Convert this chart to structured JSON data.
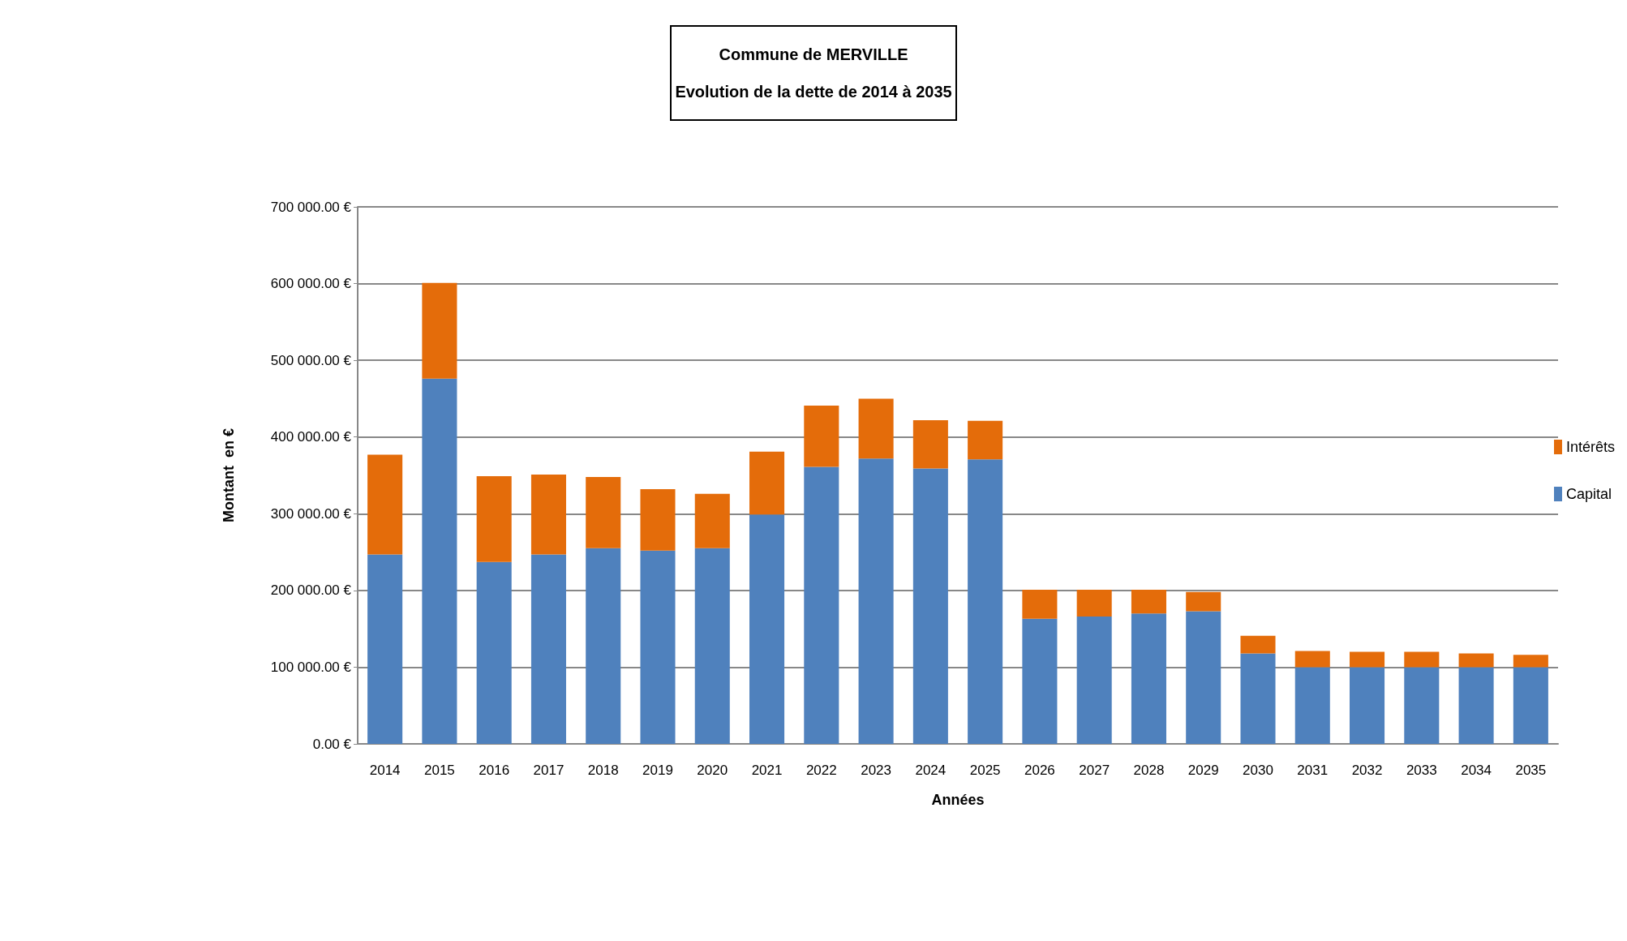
{
  "chart_data": {
    "type": "bar",
    "title": "Commune de MERVILLE\nEvolution de la dette de 2014 à 2035",
    "xlabel": "Années",
    "ylabel": "Montant  en €",
    "categories": [
      "2014",
      "2015",
      "2016",
      "2017",
      "2018",
      "2019",
      "2020",
      "2021",
      "2022",
      "2023",
      "2024",
      "2025",
      "2026",
      "2027",
      "2028",
      "2029",
      "2030",
      "2031",
      "2032",
      "2033",
      "2034",
      "2035"
    ],
    "stacked": true,
    "series": [
      {
        "name": "Capital",
        "color": "#4f81bd",
        "values": [
          247000,
          476000,
          237000,
          247000,
          255000,
          252000,
          255000,
          299000,
          361000,
          372000,
          359000,
          371000,
          163000,
          166000,
          170000,
          173000,
          118000,
          100000,
          100000,
          100000,
          100000,
          100000
        ]
      },
      {
        "name": "Intérêts",
        "color": "#e46c0a",
        "values": [
          130000,
          125000,
          112000,
          104000,
          93000,
          80000,
          71000,
          82000,
          80000,
          78000,
          63000,
          50000,
          38000,
          35000,
          31000,
          25000,
          23000,
          21000,
          20000,
          20000,
          18000,
          16000
        ]
      }
    ],
    "ylim": [
      0,
      700000
    ],
    "yticks": [
      {
        "value": 0,
        "label": "0.00 €"
      },
      {
        "value": 100000,
        "label": "100 000.00 €"
      },
      {
        "value": 200000,
        "label": "200 000.00 €"
      },
      {
        "value": 300000,
        "label": "300 000.00 €"
      },
      {
        "value": 400000,
        "label": "400 000.00 €"
      },
      {
        "value": 500000,
        "label": "500 000.00 €"
      },
      {
        "value": 600000,
        "label": "600 000.00 €"
      },
      {
        "value": 700000,
        "label": "700 000.00 €"
      }
    ],
    "grid": "y",
    "legend": "right"
  }
}
